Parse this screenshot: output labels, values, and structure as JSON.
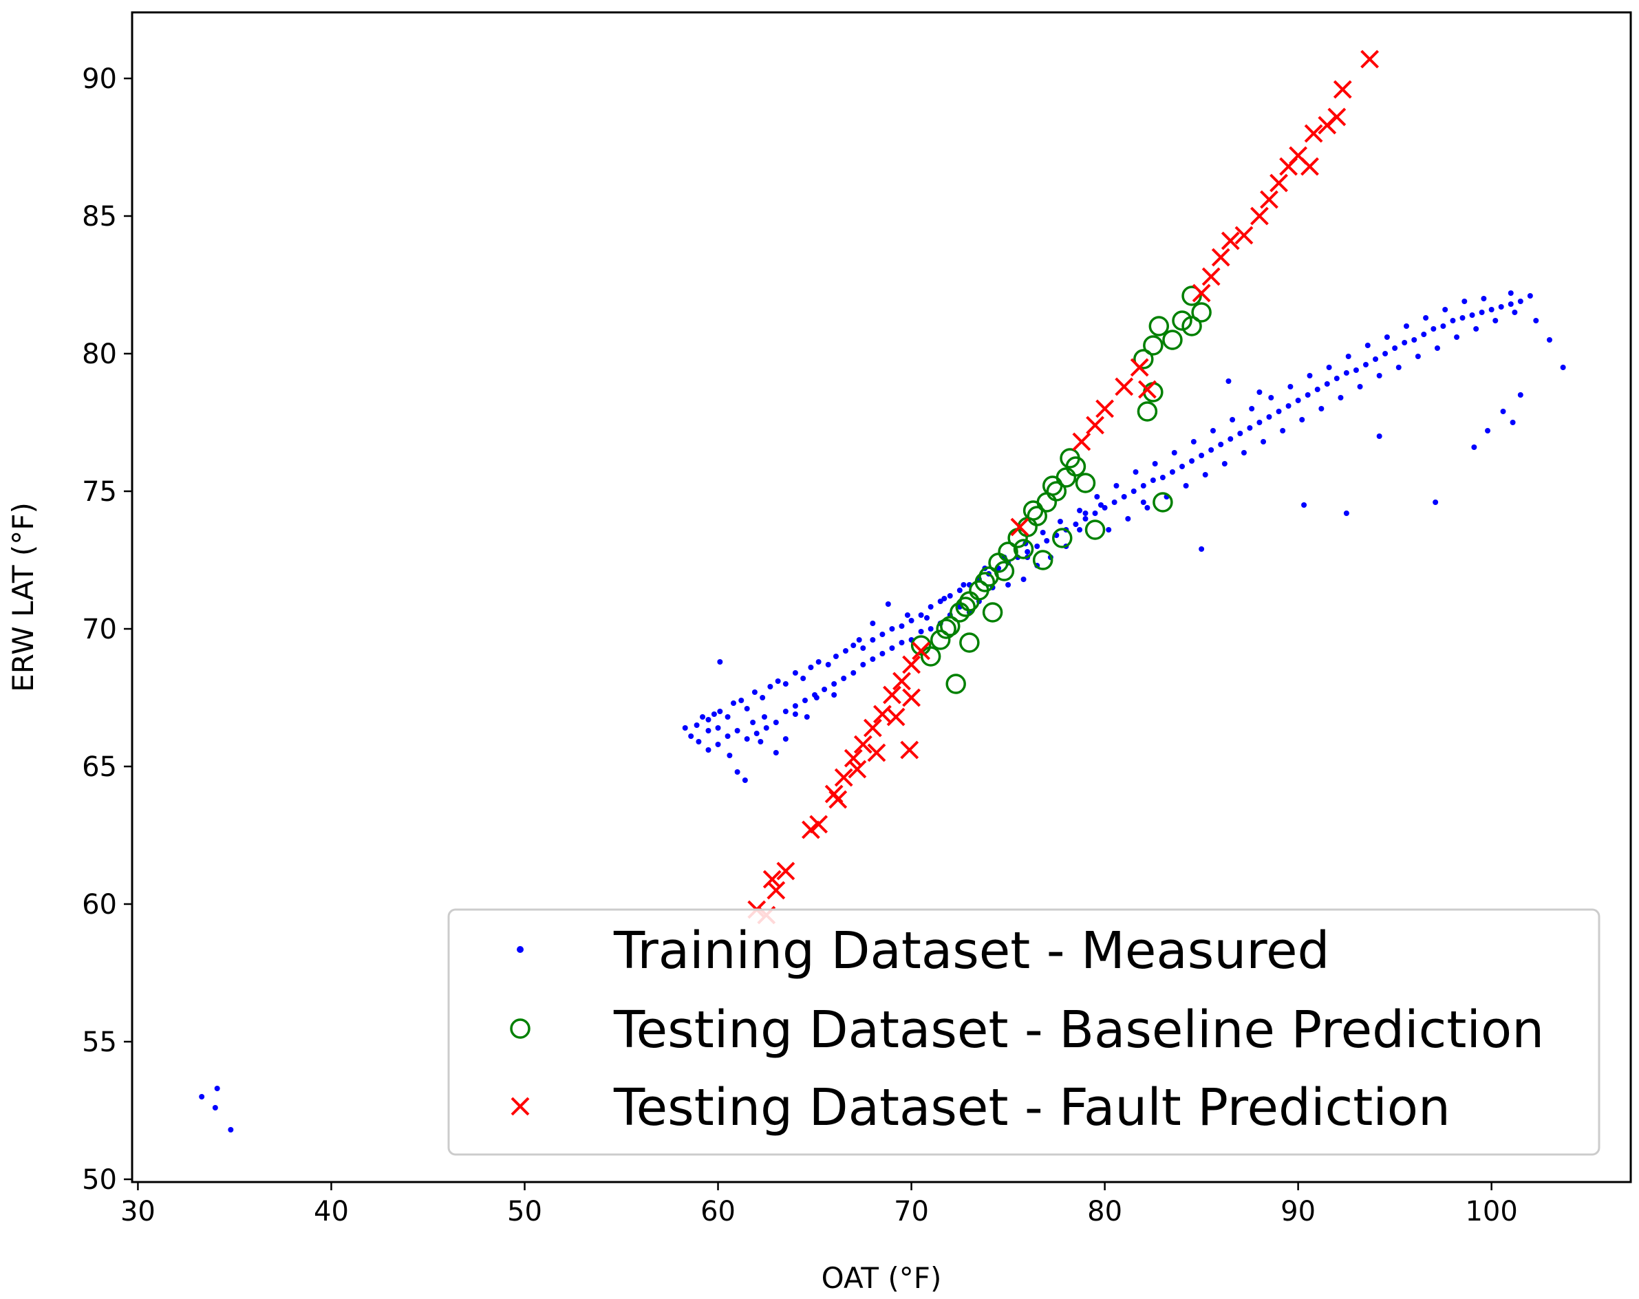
{
  "chart_data": {
    "type": "scatter",
    "title": "",
    "xlabel": "OAT (°F)",
    "ylabel": "ERW LAT (°F)",
    "xlim": [
      29.7,
      107.2
    ],
    "ylim": [
      49.9,
      92.4
    ],
    "xticks": [
      30,
      40,
      50,
      60,
      70,
      80,
      90,
      100
    ],
    "yticks": [
      50,
      55,
      60,
      65,
      70,
      75,
      80,
      85,
      90
    ],
    "grid": false,
    "legend_position": "lower-right",
    "series": [
      {
        "name": "Training Dataset - Measured",
        "marker": "dot",
        "color": "#0000ff",
        "points": [
          [
            33.3,
            53.0
          ],
          [
            34.0,
            52.6
          ],
          [
            34.1,
            53.3
          ],
          [
            34.8,
            51.8
          ],
          [
            58.3,
            66.4
          ],
          [
            58.6,
            66.1
          ],
          [
            58.9,
            66.5
          ],
          [
            59.2,
            66.8
          ],
          [
            59.5,
            66.7
          ],
          [
            59.8,
            66.9
          ],
          [
            60.1,
            67.0
          ],
          [
            60.1,
            68.8
          ],
          [
            60.5,
            66.8
          ],
          [
            60.8,
            67.3
          ],
          [
            61.2,
            67.4
          ],
          [
            61.5,
            67.1
          ],
          [
            61.9,
            67.7
          ],
          [
            62.3,
            67.5
          ],
          [
            62.7,
            67.9
          ],
          [
            63.1,
            68.1
          ],
          [
            63.5,
            68.0
          ],
          [
            64.0,
            68.4
          ],
          [
            64.4,
            68.2
          ],
          [
            64.8,
            68.6
          ],
          [
            65.2,
            68.8
          ],
          [
            65.7,
            68.7
          ],
          [
            66.1,
            69.0
          ],
          [
            66.6,
            69.2
          ],
          [
            67.0,
            69.4
          ],
          [
            67.5,
            69.3
          ],
          [
            68.0,
            69.6
          ],
          [
            68.5,
            69.8
          ],
          [
            69.0,
            70.0
          ],
          [
            69.5,
            70.1
          ],
          [
            70.0,
            70.3
          ],
          [
            70.5,
            70.5
          ],
          [
            71.0,
            70.8
          ],
          [
            71.5,
            71.0
          ],
          [
            72.0,
            71.2
          ],
          [
            72.5,
            71.4
          ],
          [
            73.0,
            71.6
          ],
          [
            73.5,
            71.8
          ],
          [
            74.0,
            72.0
          ],
          [
            74.5,
            72.2
          ],
          [
            75.0,
            72.4
          ],
          [
            75.5,
            72.6
          ],
          [
            76.0,
            72.8
          ],
          [
            76.5,
            73.0
          ],
          [
            77.0,
            73.2
          ],
          [
            77.5,
            73.4
          ],
          [
            78.0,
            73.6
          ],
          [
            78.5,
            73.8
          ],
          [
            79.0,
            74.0
          ],
          [
            79.5,
            74.2
          ],
          [
            80.0,
            74.4
          ],
          [
            80.5,
            74.6
          ],
          [
            81.0,
            74.8
          ],
          [
            81.5,
            75.0
          ],
          [
            82.0,
            75.2
          ],
          [
            82.5,
            75.4
          ],
          [
            83.0,
            75.5
          ],
          [
            83.5,
            75.7
          ],
          [
            84.0,
            75.9
          ],
          [
            84.5,
            76.1
          ],
          [
            85.0,
            76.3
          ],
          [
            85.5,
            76.5
          ],
          [
            86.0,
            76.7
          ],
          [
            86.5,
            76.9
          ],
          [
            87.0,
            77.1
          ],
          [
            87.5,
            77.3
          ],
          [
            88.0,
            77.5
          ],
          [
            88.5,
            77.7
          ],
          [
            89.0,
            77.9
          ],
          [
            89.5,
            78.1
          ],
          [
            90.0,
            78.3
          ],
          [
            90.5,
            78.5
          ],
          [
            91.0,
            78.7
          ],
          [
            91.5,
            78.9
          ],
          [
            92.0,
            79.1
          ],
          [
            92.5,
            79.3
          ],
          [
            93.0,
            79.4
          ],
          [
            93.5,
            79.6
          ],
          [
            94.0,
            79.8
          ],
          [
            94.5,
            80.0
          ],
          [
            95.0,
            80.2
          ],
          [
            95.5,
            80.4
          ],
          [
            96.0,
            80.5
          ],
          [
            96.5,
            80.7
          ],
          [
            97.0,
            80.9
          ],
          [
            97.5,
            81.0
          ],
          [
            98.0,
            81.2
          ],
          [
            98.5,
            81.3
          ],
          [
            99.0,
            81.4
          ],
          [
            99.5,
            81.5
          ],
          [
            100.0,
            81.6
          ],
          [
            100.5,
            81.7
          ],
          [
            101.0,
            81.8
          ],
          [
            101.5,
            81.9
          ],
          [
            102.0,
            82.1
          ],
          [
            102.3,
            81.2
          ],
          [
            103.0,
            80.5
          ],
          [
            103.7,
            79.5
          ],
          [
            101.5,
            78.5
          ],
          [
            101.1,
            77.5
          ],
          [
            100.6,
            77.9
          ],
          [
            99.8,
            77.2
          ],
          [
            99.1,
            76.6
          ],
          [
            97.1,
            74.6
          ],
          [
            94.2,
            77.0
          ],
          [
            92.5,
            74.2
          ],
          [
            90.3,
            74.5
          ],
          [
            88.0,
            78.6
          ],
          [
            86.4,
            79.0
          ],
          [
            85.0,
            72.9
          ],
          [
            82.0,
            74.6
          ],
          [
            79.8,
            74.5
          ],
          [
            79.0,
            74.2
          ],
          [
            78.7,
            73.6
          ],
          [
            78.0,
            73.0
          ],
          [
            77.2,
            72.6
          ],
          [
            76.5,
            72.3
          ],
          [
            76.0,
            72.6
          ],
          [
            75.8,
            71.8
          ],
          [
            75.0,
            71.6
          ],
          [
            74.2,
            71.5
          ],
          [
            73.5,
            71.0
          ],
          [
            73.0,
            70.6
          ],
          [
            72.5,
            70.8
          ],
          [
            72.0,
            70.5
          ],
          [
            71.5,
            70.2
          ],
          [
            71.0,
            70.0
          ],
          [
            70.5,
            69.9
          ],
          [
            70.0,
            69.6
          ],
          [
            69.5,
            69.5
          ],
          [
            69.0,
            69.3
          ],
          [
            68.5,
            69.1
          ],
          [
            68.0,
            68.9
          ],
          [
            67.5,
            68.7
          ],
          [
            67.0,
            68.4
          ],
          [
            66.5,
            68.2
          ],
          [
            66.0,
            68.0
          ],
          [
            65.5,
            67.8
          ],
          [
            65.0,
            67.6
          ],
          [
            64.5,
            67.4
          ],
          [
            64.0,
            67.2
          ],
          [
            63.5,
            67.0
          ],
          [
            63.0,
            66.6
          ],
          [
            62.5,
            66.4
          ],
          [
            62.0,
            66.2
          ],
          [
            61.5,
            66.0
          ],
          [
            61.0,
            66.3
          ],
          [
            60.5,
            66.1
          ],
          [
            60.0,
            65.8
          ],
          [
            59.5,
            65.6
          ],
          [
            59.0,
            65.9
          ],
          [
            59.5,
            66.3
          ],
          [
            60.0,
            66.4
          ],
          [
            60.6,
            65.4
          ],
          [
            61.0,
            64.8
          ],
          [
            61.4,
            64.5
          ],
          [
            62.2,
            65.9
          ],
          [
            63.0,
            65.5
          ],
          [
            63.5,
            66.0
          ],
          [
            64.0,
            66.9
          ],
          [
            62.4,
            66.8
          ],
          [
            61.8,
            66.6
          ],
          [
            64.6,
            66.8
          ],
          [
            65.1,
            67.5
          ],
          [
            66.0,
            67.6
          ],
          [
            67.3,
            69.6
          ],
          [
            68.0,
            70.2
          ],
          [
            68.8,
            70.9
          ],
          [
            69.8,
            70.5
          ],
          [
            70.8,
            70.4
          ],
          [
            71.7,
            71.1
          ],
          [
            72.7,
            71.6
          ],
          [
            73.8,
            72.2
          ],
          [
            74.8,
            72.6
          ],
          [
            75.9,
            73.1
          ],
          [
            76.8,
            73.5
          ],
          [
            77.7,
            73.9
          ],
          [
            78.7,
            74.3
          ],
          [
            79.6,
            74.8
          ],
          [
            80.6,
            75.2
          ],
          [
            81.6,
            75.7
          ],
          [
            82.6,
            76.0
          ],
          [
            83.6,
            76.4
          ],
          [
            84.6,
            76.8
          ],
          [
            85.6,
            77.2
          ],
          [
            86.6,
            77.6
          ],
          [
            87.6,
            78.0
          ],
          [
            88.6,
            78.4
          ],
          [
            89.6,
            78.8
          ],
          [
            90.6,
            79.2
          ],
          [
            91.6,
            79.5
          ],
          [
            92.6,
            79.9
          ],
          [
            93.6,
            80.3
          ],
          [
            94.6,
            80.6
          ],
          [
            95.6,
            81.0
          ],
          [
            96.6,
            81.3
          ],
          [
            97.6,
            81.6
          ],
          [
            98.6,
            81.9
          ],
          [
            99.6,
            82.0
          ],
          [
            101.0,
            82.2
          ],
          [
            80.2,
            73.6
          ],
          [
            81.2,
            74.0
          ],
          [
            82.2,
            74.4
          ],
          [
            83.2,
            74.8
          ],
          [
            84.2,
            75.2
          ],
          [
            85.2,
            75.6
          ],
          [
            86.2,
            76.0
          ],
          [
            87.2,
            76.4
          ],
          [
            88.2,
            76.8
          ],
          [
            89.2,
            77.2
          ],
          [
            90.2,
            77.6
          ],
          [
            91.2,
            78.0
          ],
          [
            92.2,
            78.4
          ],
          [
            93.2,
            78.8
          ],
          [
            94.2,
            79.2
          ],
          [
            95.2,
            79.5
          ],
          [
            96.2,
            79.9
          ],
          [
            97.2,
            80.2
          ],
          [
            98.2,
            80.6
          ],
          [
            99.2,
            80.9
          ],
          [
            100.2,
            81.2
          ],
          [
            101.2,
            81.5
          ]
        ]
      },
      {
        "name": "Testing Dataset - Baseline Prediction",
        "marker": "circle",
        "color": "#008000",
        "points": [
          [
            70.5,
            69.4
          ],
          [
            71.0,
            69.0
          ],
          [
            71.5,
            69.6
          ],
          [
            72.0,
            70.1
          ],
          [
            72.5,
            70.6
          ],
          [
            72.3,
            68.0
          ],
          [
            73.0,
            71.0
          ],
          [
            73.5,
            71.4
          ],
          [
            73.0,
            69.5
          ],
          [
            74.0,
            71.9
          ],
          [
            74.5,
            72.4
          ],
          [
            74.2,
            70.6
          ],
          [
            75.0,
            72.8
          ],
          [
            75.5,
            73.3
          ],
          [
            76.0,
            73.7
          ],
          [
            76.5,
            74.1
          ],
          [
            77.0,
            74.6
          ],
          [
            76.8,
            72.5
          ],
          [
            77.5,
            75.0
          ],
          [
            78.0,
            75.5
          ],
          [
            78.5,
            75.9
          ],
          [
            77.8,
            73.3
          ],
          [
            79.0,
            75.3
          ],
          [
            79.5,
            73.6
          ],
          [
            82.2,
            77.9
          ],
          [
            82.5,
            78.6
          ],
          [
            82.0,
            79.8
          ],
          [
            82.5,
            80.3
          ],
          [
            82.8,
            81.0
          ],
          [
            83.5,
            80.5
          ],
          [
            84.0,
            81.2
          ],
          [
            84.5,
            81.0
          ],
          [
            85.0,
            81.5
          ],
          [
            84.5,
            82.1
          ],
          [
            83.0,
            74.6
          ],
          [
            71.8,
            70.0
          ],
          [
            72.8,
            70.8
          ],
          [
            73.8,
            71.7
          ],
          [
            74.8,
            72.1
          ],
          [
            75.8,
            72.9
          ],
          [
            76.3,
            74.3
          ],
          [
            77.3,
            75.2
          ],
          [
            78.2,
            76.2
          ]
        ]
      },
      {
        "name": "Testing Dataset - Fault Prediction",
        "marker": "x",
        "color": "#ff0000",
        "points": [
          [
            62.0,
            59.8
          ],
          [
            62.5,
            59.6
          ],
          [
            63.0,
            60.5
          ],
          [
            63.5,
            61.2
          ],
          [
            62.8,
            60.9
          ],
          [
            64.8,
            62.7
          ],
          [
            65.2,
            62.9
          ],
          [
            66.0,
            64.0
          ],
          [
            66.5,
            64.6
          ],
          [
            67.0,
            65.3
          ],
          [
            67.5,
            65.8
          ],
          [
            68.0,
            66.4
          ],
          [
            68.5,
            66.9
          ],
          [
            69.0,
            67.6
          ],
          [
            69.5,
            68.1
          ],
          [
            70.0,
            68.7
          ],
          [
            70.5,
            69.2
          ],
          [
            69.9,
            65.6
          ],
          [
            75.6,
            73.7
          ],
          [
            78.8,
            76.8
          ],
          [
            79.5,
            77.4
          ],
          [
            80.0,
            78.0
          ],
          [
            81.0,
            78.8
          ],
          [
            81.8,
            79.5
          ],
          [
            82.2,
            78.7
          ],
          [
            85.0,
            82.2
          ],
          [
            85.5,
            82.8
          ],
          [
            86.0,
            83.5
          ],
          [
            86.5,
            84.1
          ],
          [
            87.2,
            84.3
          ],
          [
            88.0,
            85.0
          ],
          [
            88.5,
            85.6
          ],
          [
            89.0,
            86.2
          ],
          [
            89.5,
            86.8
          ],
          [
            90.0,
            87.2
          ],
          [
            90.8,
            88.0
          ],
          [
            90.6,
            86.8
          ],
          [
            91.5,
            88.3
          ],
          [
            92.0,
            88.6
          ],
          [
            92.3,
            89.6
          ],
          [
            93.7,
            90.7
          ],
          [
            68.2,
            65.5
          ],
          [
            69.2,
            66.8
          ],
          [
            67.2,
            64.9
          ],
          [
            70.0,
            67.5
          ],
          [
            66.2,
            63.8
          ]
        ]
      }
    ]
  }
}
